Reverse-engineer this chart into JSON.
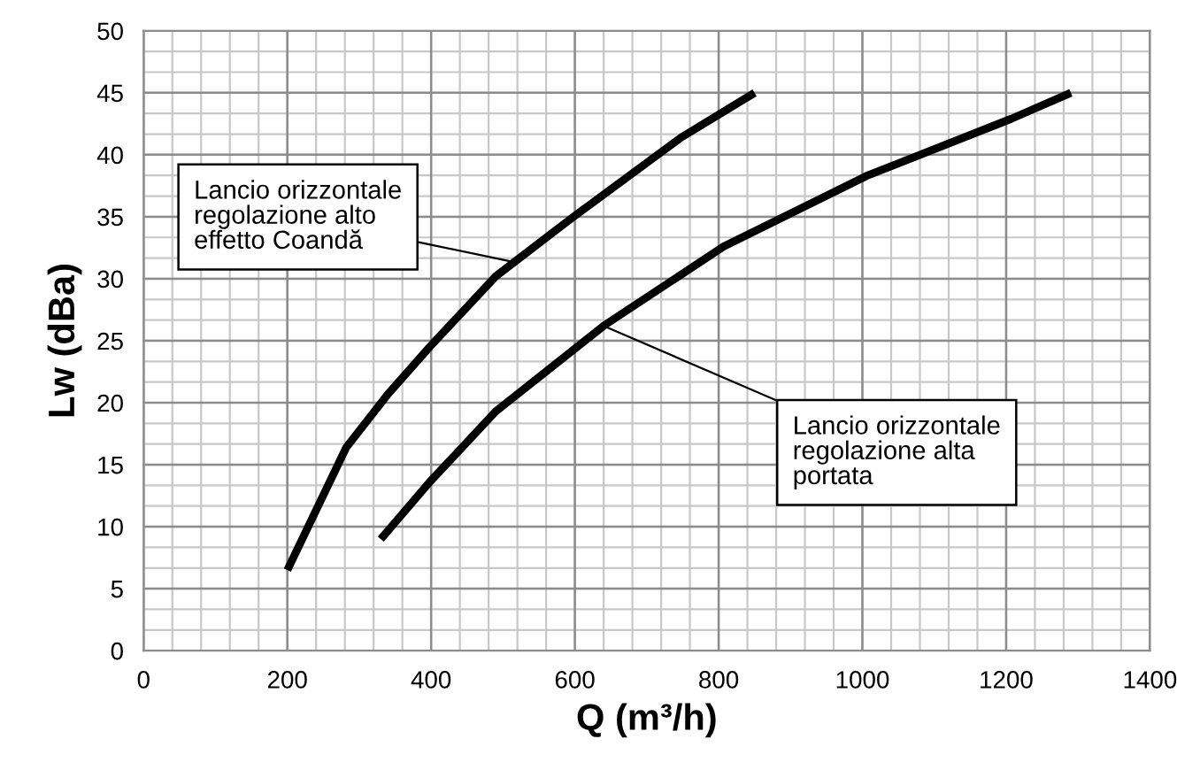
{
  "chart_data": {
    "type": "line",
    "xlabel": "Q (m³/h)",
    "ylabel": "Lw (dBa)",
    "xlim": [
      0,
      1400
    ],
    "xticks": [
      0,
      200,
      400,
      600,
      800,
      1000,
      1200,
      1400
    ],
    "ylim": [
      0,
      50
    ],
    "yticks": [
      0,
      5,
      10,
      15,
      20,
      25,
      30,
      35,
      40,
      45,
      50
    ],
    "grid": true,
    "legend": false,
    "marker": "none",
    "line_style": "solid",
    "series": [
      {
        "color": "#000000",
        "x": [
          200,
          282,
          340,
          398,
          490,
          598,
          748,
          850
        ],
        "values": [
          6.5,
          16.4,
          20.7,
          24.5,
          30.2,
          35.0,
          41.4,
          45.0
        ]
      },
      {
        "color": "#000000",
        "x": [
          330,
          398,
          490,
          640,
          807,
          1006,
          1207,
          1290
        ],
        "values": [
          9.0,
          13.6,
          19.3,
          26.2,
          32.6,
          38.3,
          42.9,
          45.0
        ]
      }
    ],
    "annotations": [
      {
        "text": "Lancio orizzontale\nregolazione alto\neffetto Coandă",
        "x": 511,
        "y": 31.4
      },
      {
        "text": "Lancio orizzontale\nregolazione alta\nportata",
        "x": 640,
        "y": 26.2
      }
    ]
  }
}
